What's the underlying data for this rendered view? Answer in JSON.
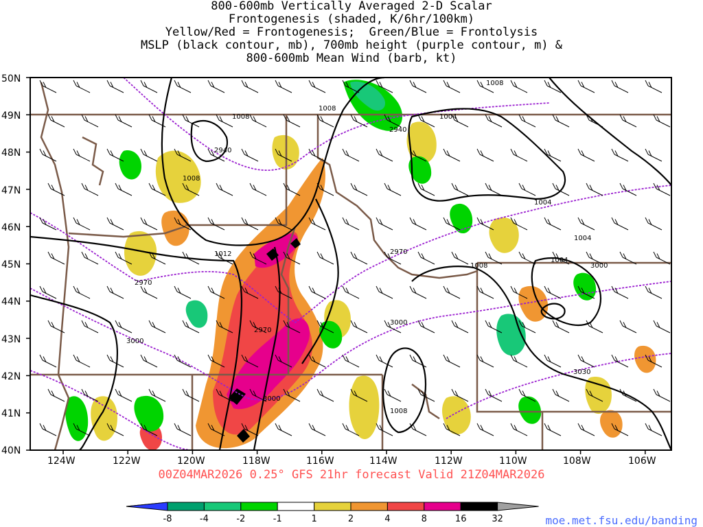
{
  "title": {
    "line1": "800-600mb Vertically Averaged 2-D Scalar",
    "line2": "Frontogenesis (shaded, K/6hr/100km)",
    "line3": "Yellow/Red = Frontogenesis;  Green/Blue = Frontolysis",
    "line4": "MSLP (black contour, mb), 700mb height (purple contour, m) &",
    "line5": "800-600mb Mean Wind (barb, kt)"
  },
  "footer": "00Z04MAR2026 0.25° GFS 21hr forecast Valid 21Z04MAR2026",
  "url": "moe.met.fsu.edu/banding",
  "axes": {
    "lat_labels": [
      "50N",
      "49N",
      "48N",
      "47N",
      "46N",
      "45N",
      "44N",
      "43N",
      "42N",
      "41N",
      "40N"
    ],
    "lon_labels": [
      "124W",
      "122W",
      "120W",
      "118W",
      "116W",
      "114W",
      "112W",
      "110W",
      "108W",
      "106W"
    ]
  },
  "colorbar": {
    "labels": [
      "-8",
      "-4",
      "-2",
      "-1",
      "1",
      "2",
      "4",
      "8",
      "16",
      "32"
    ],
    "colors": [
      "#2a3cff",
      "#00a06e",
      "#18c878",
      "#00d400",
      "#ffffff",
      "#e6d23c",
      "#f09632",
      "#f04646",
      "#e6008c",
      "#000000",
      "#a0a0a0"
    ]
  },
  "contours": {
    "mslp_labels": [
      "1008",
      "1008",
      "1008",
      "1008",
      "1008",
      "1004",
      "1004",
      "1004",
      "1004",
      "1012",
      "1008"
    ],
    "height_labels": [
      "2940",
      "2940",
      "2970",
      "2970",
      "2970",
      "3000",
      "3000",
      "3000",
      "3000",
      "3030"
    ]
  },
  "colors": {
    "mslp": "#000000",
    "height": "#9b20d0",
    "borders": "#7a5a48",
    "footer": "#ff5050",
    "url": "#4a6cff"
  }
}
